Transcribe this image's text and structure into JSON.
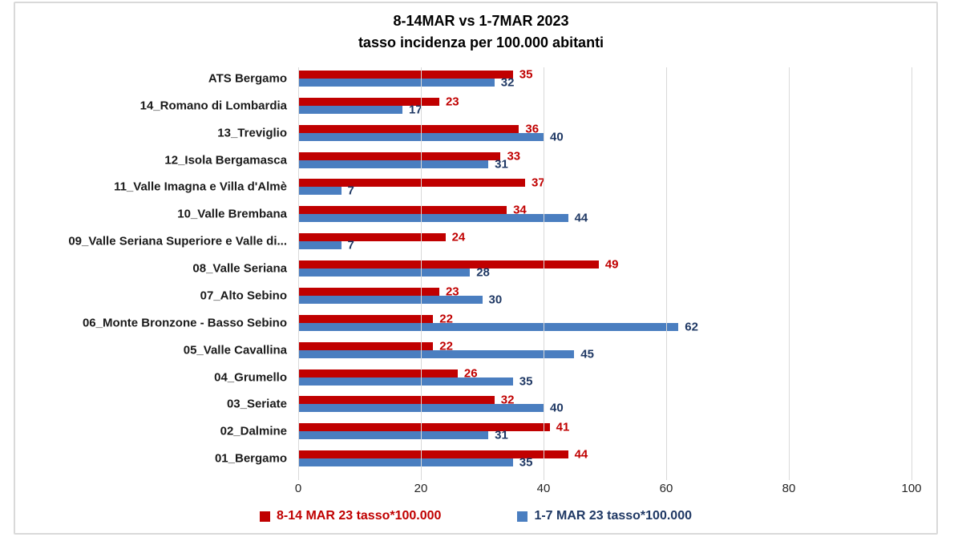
{
  "title_line1": "8-14MAR vs 1-7MAR 2023",
  "title_line2": "tasso incidenza per 100.000 abitanti",
  "chart_data": {
    "type": "bar",
    "orientation": "horizontal",
    "title": "8-14MAR vs 1-7MAR 2023 — tasso incidenza per 100.000 abitanti",
    "categories": [
      "ATS Bergamo",
      "14_Romano di Lombardia",
      "13_Treviglio",
      "12_Isola Bergamasca",
      "11_Valle Imagna e Villa d'Almè",
      "10_Valle Brembana",
      "09_Valle Seriana Superiore e Valle di...",
      "08_Valle Seriana",
      "07_Alto Sebino",
      "06_Monte Bronzone - Basso Sebino",
      "05_Valle Cavallina",
      "04_Grumello",
      "03_Seriate",
      "02_Dalmine",
      "01_Bergamo"
    ],
    "series": [
      {
        "name": "8-14 MAR 23 tasso*100.000",
        "color": "#c00000",
        "label_color": "#c00000",
        "values": [
          35,
          23,
          36,
          33,
          37,
          34,
          24,
          49,
          23,
          22,
          22,
          26,
          32,
          41,
          44
        ]
      },
      {
        "name": "1-7 MAR 23 tasso*100.000",
        "color": "#4a7ec0",
        "label_color": "#1f3864",
        "values": [
          32,
          17,
          40,
          31,
          7,
          44,
          7,
          28,
          30,
          62,
          45,
          35,
          40,
          31,
          35
        ]
      }
    ],
    "xlim": [
      0,
      100
    ],
    "x_ticks": [
      0,
      20,
      40,
      60,
      80,
      100
    ],
    "grid": true,
    "legend_position": "bottom"
  },
  "colors": {
    "series1": "#c00000",
    "series1_label": "#c00000",
    "series2": "#4a7ec0",
    "series2_label": "#1f3864",
    "gridline": "#d9d9d9",
    "frame_border": "#d9d9d9",
    "title_text": "#000000",
    "axis_text": "#262626",
    "background": "#ffffff"
  }
}
